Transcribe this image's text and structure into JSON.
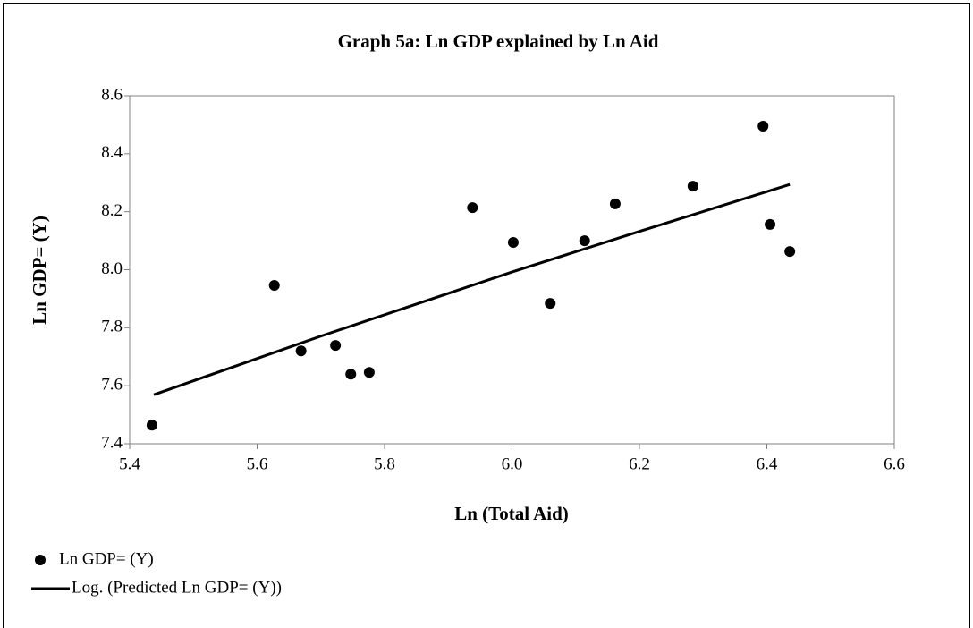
{
  "chart_data": {
    "type": "scatter",
    "title": "Graph 5a: Ln GDP explained by Ln Aid",
    "x_label": "Ln (Total Aid)",
    "y_label": "Ln GDP= (Y)",
    "xlim": [
      5.4,
      6.6
    ],
    "xticks": [
      5.4,
      5.6,
      5.8,
      {
        "value": 6.0,
        "label": "6.0"
      },
      6.2,
      6.4,
      6.6
    ],
    "ylim": [
      7.4,
      8.6
    ],
    "yticks": [
      7.4,
      7.6,
      7.8,
      {
        "value": 8.0,
        "label": "8.0"
      },
      8.2,
      8.4,
      8.6
    ],
    "series": [
      {
        "name": "Ln GDP= (Y)",
        "color": "#000000",
        "kind": "points",
        "x": [
          5.435,
          5.627,
          5.669,
          5.723,
          5.747,
          5.776,
          5.938,
          6.002,
          6.06,
          6.114,
          6.162,
          6.284,
          6.394,
          6.405,
          6.436
        ],
        "values": [
          7.464,
          7.946,
          7.72,
          7.739,
          7.64,
          7.646,
          8.214,
          8.094,
          7.884,
          8.1,
          8.227,
          8.288,
          8.495,
          8.156,
          8.063
        ]
      },
      {
        "name": "Log. (Predicted Ln GDP= (Y))",
        "color": "#000000",
        "kind": "line",
        "x": [
          5.438,
          5.7,
          6.0,
          6.2,
          6.436
        ],
        "values": [
          7.569,
          7.771,
          7.992,
          8.132,
          8.294
        ]
      }
    ]
  }
}
